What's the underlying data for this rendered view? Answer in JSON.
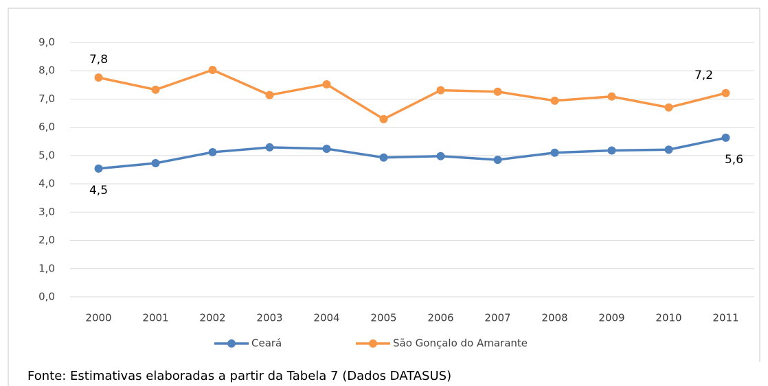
{
  "chart_data": {
    "type": "line",
    "categories": [
      "2000",
      "2001",
      "2002",
      "2003",
      "2004",
      "2005",
      "2006",
      "2007",
      "2008",
      "2009",
      "2010",
      "2011"
    ],
    "series": [
      {
        "name": "Ceará",
        "color": "#4f81bd",
        "values": [
          4.54,
          4.73,
          5.12,
          5.29,
          5.24,
          4.93,
          4.98,
          4.85,
          5.1,
          5.18,
          5.21,
          5.63
        ],
        "value_labels": [
          "4,5",
          null,
          null,
          null,
          null,
          null,
          null,
          null,
          null,
          null,
          null,
          "5,6"
        ]
      },
      {
        "name": "São Gonçalo do Amarante",
        "color": "#f79646",
        "values": [
          7.76,
          7.33,
          8.03,
          7.14,
          7.52,
          6.29,
          7.31,
          7.26,
          6.94,
          7.09,
          6.7,
          7.21
        ],
        "value_labels": [
          "7,8",
          null,
          null,
          null,
          null,
          null,
          null,
          null,
          null,
          null,
          null,
          "7,2"
        ]
      }
    ],
    "ylim": [
      0,
      9
    ],
    "yticks": [
      {
        "value": 0,
        "label": "0,0"
      },
      {
        "value": 1,
        "label": "1,0"
      },
      {
        "value": 2,
        "label": "2,0"
      },
      {
        "value": 3,
        "label": "3,0"
      },
      {
        "value": 4,
        "label": "4,0"
      },
      {
        "value": 5,
        "label": "5,0"
      },
      {
        "value": 6,
        "label": "6,0"
      },
      {
        "value": 7,
        "label": "7,0"
      },
      {
        "value": 8,
        "label": "8,0"
      },
      {
        "value": 9,
        "label": "9,0"
      }
    ],
    "grid": true,
    "legend": "bottom",
    "caption": "Fonte: Estimativas elaboradas a partir da Tabela 7 (Dados DATASUS)"
  }
}
